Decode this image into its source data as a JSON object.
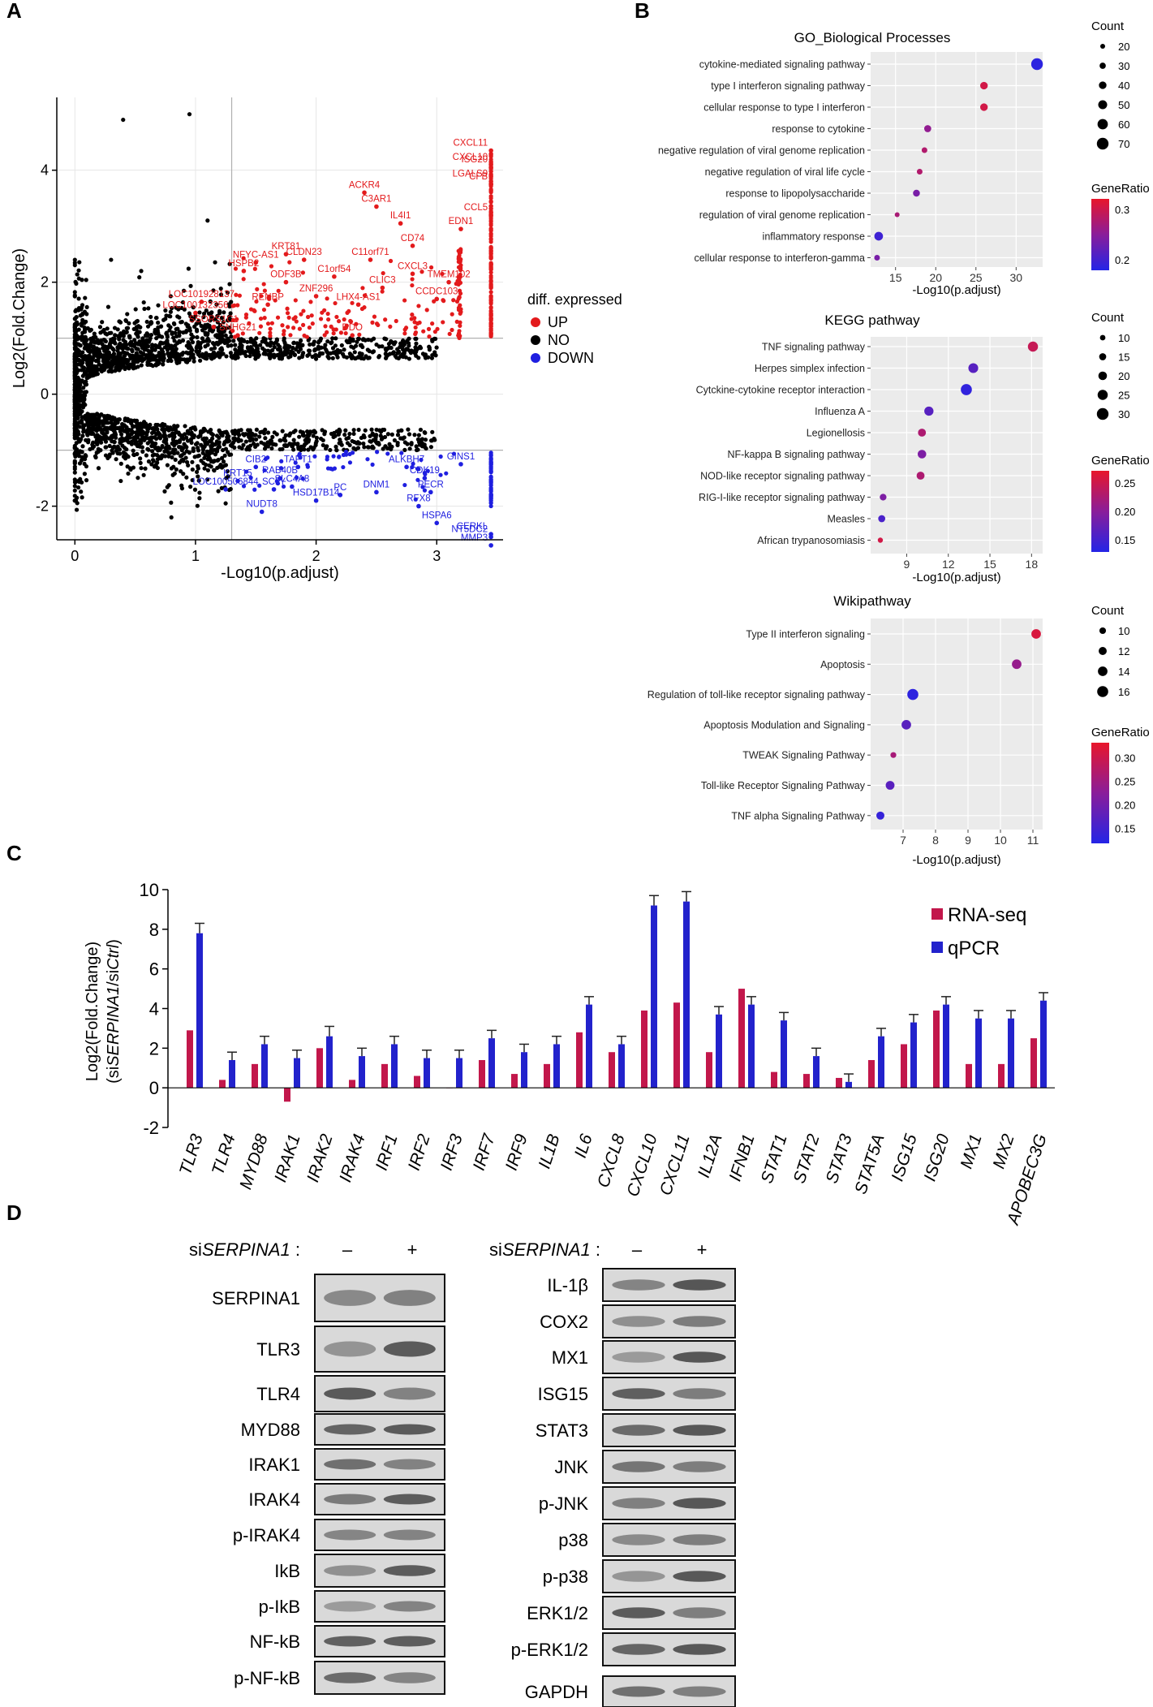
{
  "panel_letters": {
    "a": "A",
    "b": "B",
    "c": "C",
    "d": "D"
  },
  "colors": {
    "up": "#e31a1c",
    "no": "#000000",
    "down": "#1f1fe0",
    "rnaseq": "#c2174b",
    "qpcr": "#2222cc",
    "ratio_high": "#e8162b",
    "ratio_low": "#2424e6"
  },
  "chart_data": [
    {
      "id": "volcano",
      "type": "scatter",
      "title": "",
      "xlabel": "-Log10(p.adjust)",
      "ylabel": "Log2(Fold.Change)",
      "xlim": [
        -0.15,
        3.55
      ],
      "ylim": [
        -2.6,
        5.3
      ],
      "xticks": [
        "0",
        "1",
        "2",
        "3"
      ],
      "yticks": [
        "-2",
        "0",
        "2",
        "4"
      ],
      "thresholds": {
        "x": 1.3,
        "y_up": 1,
        "y_down": -1
      },
      "legend": {
        "title": "diff. expressed",
        "items": [
          "UP",
          "NO",
          "DOWN"
        ]
      },
      "up_labels": [
        {
          "gene": "CXCL11",
          "x": 3.45,
          "y": 4.35
        },
        {
          "gene": "CXCL10",
          "x": 3.45,
          "y": 4.1
        },
        {
          "gene": "ISG20",
          "x": 3.45,
          "y": 4.05
        },
        {
          "gene": "LGALS9",
          "x": 3.45,
          "y": 3.8
        },
        {
          "gene": "CFB",
          "x": 3.45,
          "y": 3.75
        },
        {
          "gene": "CCL5",
          "x": 3.45,
          "y": 3.2
        },
        {
          "gene": "ACKR4",
          "x": 2.4,
          "y": 3.6
        },
        {
          "gene": "C3AR1",
          "x": 2.5,
          "y": 3.35
        },
        {
          "gene": "IL4I1",
          "x": 2.7,
          "y": 3.05
        },
        {
          "gene": "EDN1",
          "x": 3.2,
          "y": 2.95
        },
        {
          "gene": "CD74",
          "x": 2.8,
          "y": 2.65
        },
        {
          "gene": "C11orf71",
          "x": 2.45,
          "y": 2.4
        },
        {
          "gene": "CLDN23",
          "x": 1.9,
          "y": 2.4
        },
        {
          "gene": "KRT81",
          "x": 1.75,
          "y": 2.5
        },
        {
          "gene": "NFYC-AS1",
          "x": 1.5,
          "y": 2.35
        },
        {
          "gene": "HSPB2",
          "x": 1.4,
          "y": 2.2
        },
        {
          "gene": "ODF3B",
          "x": 1.75,
          "y": 2.0
        },
        {
          "gene": "C1orf54",
          "x": 2.15,
          "y": 2.1
        },
        {
          "gene": "CXCL3",
          "x": 2.8,
          "y": 2.15
        },
        {
          "gene": "CLIC3",
          "x": 2.55,
          "y": 1.9
        },
        {
          "gene": "ZNF296",
          "x": 2.0,
          "y": 1.75
        },
        {
          "gene": "TMEM102",
          "x": 3.1,
          "y": 2.0
        },
        {
          "gene": "LHX4-AS1",
          "x": 2.35,
          "y": 1.6
        },
        {
          "gene": "CCDC103",
          "x": 3.0,
          "y": 1.7
        },
        {
          "gene": "LOC101928137",
          "x": 1.05,
          "y": 1.65
        },
        {
          "gene": "RENBP",
          "x": 1.6,
          "y": 1.6
        },
        {
          "gene": "LOC100132356",
          "x": 1.0,
          "y": 1.45
        },
        {
          "gene": "SSORS1C1",
          "x": 1.15,
          "y": 1.2
        },
        {
          "gene": "SNHG21",
          "x": 1.35,
          "y": 1.05
        },
        {
          "gene": "DDO",
          "x": 2.3,
          "y": 1.05
        }
      ],
      "down_labels": [
        {
          "gene": "CIB2",
          "x": 1.5,
          "y": -1.3
        },
        {
          "gene": "TAPT1",
          "x": 1.85,
          "y": -1.3
        },
        {
          "gene": "RAB40B",
          "x": 1.7,
          "y": -1.5
        },
        {
          "gene": "KRT15",
          "x": 1.35,
          "y": -1.55
        },
        {
          "gene": "LOC100506844",
          "x": 1.25,
          "y": -1.7
        },
        {
          "gene": "SCLY",
          "x": 1.65,
          "y": -1.7
        },
        {
          "gene": "ALKBH7",
          "x": 2.75,
          "y": -1.3
        },
        {
          "gene": "GINS1",
          "x": 3.2,
          "y": -1.25
        },
        {
          "gene": "CDK19",
          "x": 2.9,
          "y": -1.5
        },
        {
          "gene": "PC",
          "x": 2.2,
          "y": -1.8
        },
        {
          "gene": "DNM1",
          "x": 2.5,
          "y": -1.75
        },
        {
          "gene": "PECR",
          "x": 2.95,
          "y": -1.75
        },
        {
          "gene": "SLC4A8",
          "x": 1.8,
          "y": -1.65
        },
        {
          "gene": "HSD17B14",
          "x": 2.0,
          "y": -1.9
        },
        {
          "gene": "RFX8",
          "x": 2.85,
          "y": -2.0
        },
        {
          "gene": "NUDT8",
          "x": 1.55,
          "y": -2.1
        },
        {
          "gene": "HSPA6",
          "x": 3.0,
          "y": -2.3
        },
        {
          "gene": "CERKL",
          "x": 3.45,
          "y": -2.5
        },
        {
          "gene": "NT5DC2",
          "x": 3.45,
          "y": -2.55
        },
        {
          "gene": "MMP3",
          "x": 3.45,
          "y": -2.7
        }
      ]
    },
    {
      "id": "go",
      "type": "scatter",
      "title": "GO_Biological Processes",
      "xlabel": "-Log10(p.adjust)",
      "xlim": [
        11.9,
        33.3
      ],
      "xticks": [
        15,
        20,
        25,
        30
      ],
      "terms": [
        "cytokine-mediated signaling pathway",
        "type I interferon signaling pathway",
        "cellular response to type I interferon",
        "response to cytokine",
        "negative regulation of viral genome replication",
        "negative regulation of viral life cycle",
        "response to lipopolysaccharide",
        "regulation of viral genome replication",
        "inflammatory response",
        "cellular response to interferon-gamma"
      ],
      "x": [
        32.6,
        26.0,
        26.0,
        19.0,
        18.6,
        18.0,
        17.6,
        15.2,
        12.9,
        12.7
      ],
      "count": [
        70,
        40,
        40,
        36,
        26,
        26,
        35,
        20,
        48,
        26
      ],
      "gene_ratio": [
        0.15,
        0.35,
        0.35,
        0.27,
        0.31,
        0.31,
        0.24,
        0.3,
        0.17,
        0.24
      ],
      "count_legend": {
        "title": "Count",
        "values": [
          20,
          30,
          40,
          50,
          60,
          70
        ]
      },
      "ratio_legend": {
        "title": "GeneRatio",
        "ticks": [
          "0.3",
          "0.2"
        ],
        "range": [
          0.14,
          0.38
        ]
      }
    },
    {
      "id": "kegg",
      "type": "scatter",
      "title": "KEGG pathway",
      "xlabel": "-Log10(p.adjust)",
      "xlim": [
        6.4,
        18.8
      ],
      "xticks": [
        9,
        12,
        15,
        18
      ],
      "terms": [
        "TNF signaling pathway",
        "Herpes simplex infection",
        "Cytckine-cytokine receptor interaction",
        "Influenza A",
        "Legionellosis",
        "NF-kappa B signaling pathway",
        "NOD-like receptor signaling pathway",
        "RIG-I-like receptor signaling pathway",
        "Measles",
        "African trypanosomiasis"
      ],
      "x": [
        18.1,
        13.8,
        13.3,
        10.6,
        10.1,
        10.1,
        10.0,
        7.3,
        7.2,
        7.1
      ],
      "count": [
        25,
        24,
        28,
        22,
        18,
        20,
        18,
        14,
        15,
        9
      ],
      "gene_ratio": [
        0.24,
        0.15,
        0.12,
        0.15,
        0.22,
        0.18,
        0.22,
        0.18,
        0.14,
        0.25
      ],
      "count_legend": {
        "title": "Count",
        "values": [
          10,
          15,
          20,
          25,
          30
        ]
      },
      "ratio_legend": {
        "title": "GeneRatio",
        "ticks": [
          "0.25",
          "0.20",
          "0.15"
        ],
        "range": [
          0.11,
          0.27
        ]
      }
    },
    {
      "id": "wiki",
      "type": "scatter",
      "title": "Wikipathway",
      "xlabel": "-Log10(p.adjust)",
      "xlim": [
        6.0,
        11.3
      ],
      "xticks": [
        7,
        8,
        9,
        10,
        11
      ],
      "terms": [
        "Type II interferon signaling",
        "Apoptosis",
        "Regulation of toll-like receptor signaling pathway",
        "Apoptosis Modulation and Signaling",
        "TWEAK Signaling Pathway",
        "Toll-like Receptor Signaling Pathway",
        "TNF alpha Signaling Pathway"
      ],
      "x": [
        11.1,
        10.5,
        7.3,
        7.1,
        6.7,
        6.6,
        6.3
      ],
      "count": [
        14,
        14,
        16,
        14,
        9,
        13,
        12
      ],
      "gene_ratio": [
        0.32,
        0.24,
        0.12,
        0.17,
        0.26,
        0.17,
        0.13
      ],
      "count_legend": {
        "title": "Count",
        "values": [
          10,
          12,
          14,
          16
        ]
      },
      "ratio_legend": {
        "title": "GeneRatio",
        "ticks": [
          "0.30",
          "0.25",
          "0.20",
          "0.15"
        ],
        "range": [
          0.11,
          0.34
        ]
      }
    },
    {
      "id": "bars",
      "type": "bar",
      "title": "",
      "ylabel_line1": "Log2(Fold.Change)",
      "ylabel_line2_pre": "(si",
      "ylabel_line2_it1": "SERPINA1",
      "ylabel_line2_mid": "/si",
      "ylabel_line2_it2": "Ctrl",
      "ylabel_line2_post": ")",
      "ylim": [
        -2,
        10
      ],
      "yticks": [
        "-2",
        "0",
        "2",
        "4",
        "6",
        "8",
        "10"
      ],
      "categories": [
        "TLR3",
        "TLR4",
        "MYD88",
        "IRAK1",
        "IRAK2",
        "IRAK4",
        "IRF1",
        "IRF2",
        "IRF3",
        "IRF7",
        "IRF9",
        "IL1B",
        "IL6",
        "CXCL8",
        "CXCL10",
        "CXCL11",
        "IL12A",
        "IFNB1",
        "STAT1",
        "STAT2",
        "STAT3",
        "STAT5A",
        "ISG15",
        "ISG20",
        "MX1",
        "MX2",
        "APOBEC3G"
      ],
      "series": [
        {
          "name": "RNA-seq",
          "values": [
            2.9,
            0.4,
            1.2,
            -0.7,
            2.0,
            0.4,
            1.2,
            0.6,
            0.0,
            1.4,
            0.7,
            1.2,
            2.8,
            1.8,
            3.9,
            4.3,
            1.8,
            5.0,
            0.8,
            0.7,
            0.5,
            1.4,
            2.2,
            3.9,
            1.2,
            1.2,
            2.5
          ]
        },
        {
          "name": "qPCR",
          "values": [
            7.8,
            1.4,
            2.2,
            1.5,
            2.6,
            1.6,
            2.2,
            1.5,
            1.5,
            2.5,
            1.8,
            2.2,
            4.2,
            2.2,
            9.2,
            9.4,
            3.7,
            4.2,
            3.4,
            1.6,
            0.3,
            2.6,
            3.3,
            4.2,
            3.5,
            3.5,
            4.4
          ]
        }
      ],
      "errors": [
        0.5,
        0.4,
        0.4,
        0.4,
        0.5,
        0.4,
        0.4,
        0.4,
        0.4,
        0.4,
        0.4,
        0.4,
        0.4,
        0.4,
        0.5,
        0.5,
        0.4,
        0.4,
        0.4,
        0.4,
        0.4,
        0.4,
        0.4,
        0.4,
        0.4,
        0.4,
        0.4
      ]
    }
  ],
  "western": {
    "condition_prefix": "si",
    "condition_gene": "SERPINA1",
    "condition_suffix": " :",
    "minus": "–",
    "plus": "+",
    "left_labels": [
      "SERPINA1",
      "TLR3",
      "TLR4",
      "MYD88",
      "IRAK1",
      "IRAK4",
      "p-IRAK4",
      "IkB",
      "p-IkB",
      "NF-kB",
      "p-NF-kB"
    ],
    "right_labels": [
      "IL-1β",
      "COX2",
      "MX1",
      "ISG15",
      "STAT3",
      "JNK",
      "p-JNK",
      "p38",
      "p-p38",
      "ERK1/2",
      "p-ERK1/2",
      "GAPDH"
    ]
  }
}
